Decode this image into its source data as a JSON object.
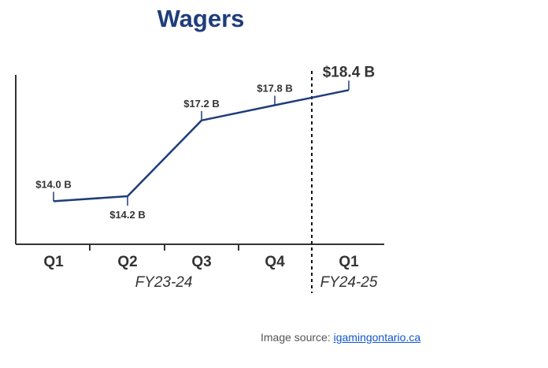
{
  "title": "Wagers",
  "colors": {
    "title": "#1f3d7a",
    "line": "#1f3d7a",
    "axis": "#333333",
    "text": "#333333"
  },
  "chart_data": {
    "type": "line",
    "title": "Wagers",
    "categories": [
      "Q1",
      "Q2",
      "Q3",
      "Q4",
      "Q1"
    ],
    "groups": [
      {
        "label": "FY23-24",
        "categories": [
          "Q1",
          "Q2",
          "Q3",
          "Q4"
        ]
      },
      {
        "label": "FY24-25",
        "categories": [
          "Q1"
        ]
      }
    ],
    "series": [
      {
        "values": [
          14.0,
          14.2,
          17.2,
          17.8,
          18.4
        ],
        "labels": [
          "$14.0 B",
          "$14.2 B",
          "$17.2 B",
          "$17.8 B",
          "$18.4 B"
        ]
      }
    ],
    "xlabel": "",
    "ylabel": "",
    "ylim": [
      12.3,
      19.0
    ],
    "grid": false,
    "divider_between": [
      "Q4",
      "Q1"
    ]
  },
  "source": {
    "prefix": "Image source: ",
    "link": "igamingontario.ca"
  }
}
